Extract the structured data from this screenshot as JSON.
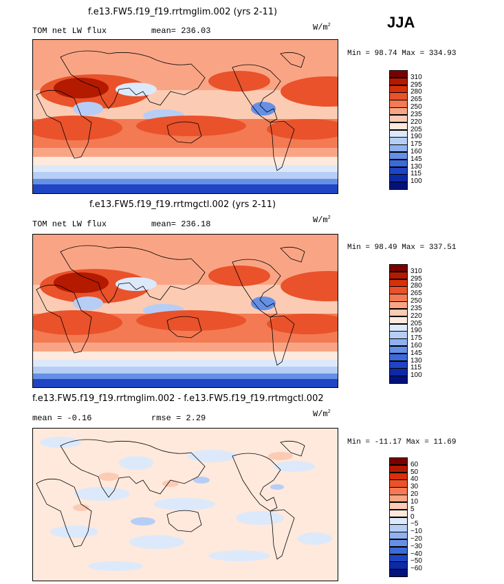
{
  "season": "JJA",
  "units": "W/m",
  "units_exp": "2",
  "panels": [
    {
      "title": "f.e13.FW5.f19_f19.rrtmglim.002 (yrs 2-11)",
      "variable": "TOM net LW flux",
      "stat_label": "mean=",
      "stat_value": "236.03",
      "minmax": "Min =  98.74 Max = 334.93",
      "colorbar_labels": [
        "310",
        "295",
        "280",
        "265",
        "250",
        "235",
        "220",
        "205",
        "190",
        "175",
        "160",
        "145",
        "130",
        "115",
        "100"
      ],
      "colors": [
        "#7a0000",
        "#b41a00",
        "#d7300a",
        "#e9522a",
        "#f37a53",
        "#f9a585",
        "#fccbb4",
        "#fee9dc",
        "#dce9fb",
        "#b6cef6",
        "#8fb1ef",
        "#6590e6",
        "#3d6ad9",
        "#1f45c4",
        "#0d2aa6",
        "#00137a"
      ]
    },
    {
      "title": "f.e13.FW5.f19_f19.rrtmgctl.002 (yrs 2-11)",
      "variable": "TOM net LW flux",
      "stat_label": "mean=",
      "stat_value": "236.18",
      "minmax": "Min =  98.49 Max = 337.51",
      "colorbar_labels": [
        "310",
        "295",
        "280",
        "265",
        "250",
        "235",
        "220",
        "205",
        "190",
        "175",
        "160",
        "145",
        "130",
        "115",
        "100"
      ],
      "colors": [
        "#7a0000",
        "#b41a00",
        "#d7300a",
        "#e9522a",
        "#f37a53",
        "#f9a585",
        "#fccbb4",
        "#fee9dc",
        "#dce9fb",
        "#b6cef6",
        "#8fb1ef",
        "#6590e6",
        "#3d6ad9",
        "#1f45c4",
        "#0d2aa6",
        "#00137a"
      ]
    },
    {
      "title": "f.e13.FW5.f19_f19.rrtmglim.002 - f.e13.FW5.f19_f19.rrtmgctl.002",
      "stat_label": "mean =",
      "stat_value": "-0.16",
      "stat2_label": "rmse =",
      "stat2_value": "2.29",
      "minmax": "Min = -11.17 Max =  11.69",
      "colorbar_labels": [
        "60",
        "50",
        "40",
        "30",
        "20",
        "10",
        "5",
        "0",
        "-5",
        "-10",
        "-20",
        "-30",
        "-40",
        "-50",
        "-60"
      ],
      "colors": [
        "#7a0000",
        "#b41a00",
        "#d7300a",
        "#e9522a",
        "#f37a53",
        "#f9a585",
        "#fccbb4",
        "#fee9dc",
        "#dce9fb",
        "#b6cef6",
        "#8fb1ef",
        "#6590e6",
        "#3d6ad9",
        "#1f45c4",
        "#0d2aa6",
        "#00137a"
      ]
    }
  ]
}
